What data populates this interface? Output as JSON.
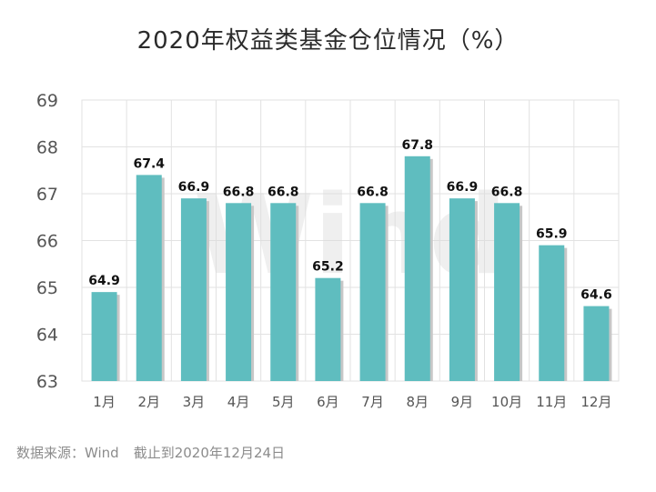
{
  "title": "2020年权益类基金仓位情况（%）",
  "source": "数据来源：Wind",
  "cutoff": "截止到2020年12月24日",
  "watermark": "Wind",
  "colors": {
    "bar": "#5fbdbf",
    "bar_shadow": "#c7c7c7",
    "grid": "#e2e2e2",
    "axis_text": "#555555",
    "label": "#111111"
  },
  "chart_data": {
    "type": "bar",
    "title": "2020年权益类基金仓位情况（%）",
    "categories": [
      "1月",
      "2月",
      "3月",
      "4月",
      "5月",
      "6月",
      "7月",
      "8月",
      "9月",
      "10月",
      "11月",
      "12月"
    ],
    "values": [
      64.9,
      67.4,
      66.9,
      66.8,
      66.8,
      65.2,
      66.8,
      67.8,
      66.9,
      66.8,
      65.9,
      64.6
    ],
    "yticks": [
      63,
      64,
      65,
      66,
      67,
      68,
      69
    ],
    "ylim": [
      63,
      69
    ],
    "grid": true,
    "xlabel": "",
    "ylabel": ""
  }
}
